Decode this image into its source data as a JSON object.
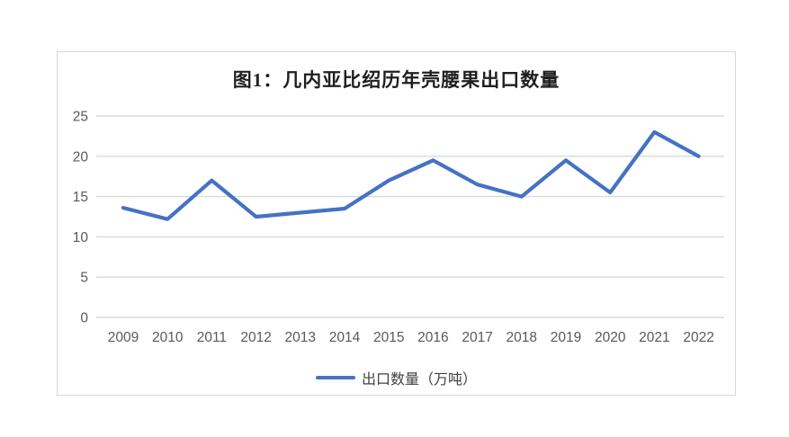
{
  "figure": {
    "title": "图1：几内亚比绍历年壳腰果出口数量"
  },
  "legend": {
    "label": "出口数量（万吨）"
  },
  "colors": {
    "line": "#4472C4",
    "gridline": "#d9d9d9",
    "axis_text": "#595959",
    "title_text": "#1f1f1f",
    "frame_border": "#d8d8d8"
  },
  "chart_data": {
    "type": "line",
    "title": "图1：几内亚比绍历年壳腰果出口数量",
    "categories": [
      "2009",
      "2010",
      "2011",
      "2012",
      "2013",
      "2014",
      "2015",
      "2016",
      "2017",
      "2018",
      "2019",
      "2020",
      "2021",
      "2022"
    ],
    "series": [
      {
        "name": "出口数量（万吨）",
        "values": [
          13.6,
          12.2,
          17,
          12.5,
          13,
          13.5,
          17,
          19.5,
          16.5,
          15,
          19.5,
          15.5,
          23,
          20
        ]
      }
    ],
    "xlabel": "",
    "ylabel": "",
    "ylim": [
      0,
      25
    ],
    "yticks": [
      0,
      5,
      10,
      15,
      20,
      25
    ],
    "grid": true,
    "legend_position": "bottom"
  }
}
